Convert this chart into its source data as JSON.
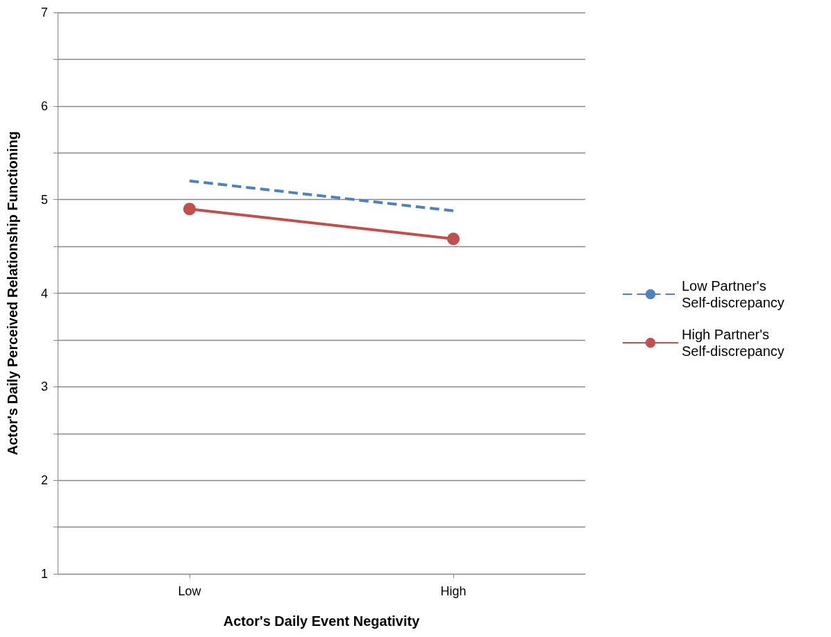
{
  "chart_data": {
    "type": "line",
    "xlabel": "Actor's Daily Event Negativity",
    "ylabel": "Actor's Daily Perceived Relationship Functioning",
    "categories": [
      "Low",
      "High"
    ],
    "series": [
      {
        "name": "Low Partner's Self-discrepancy",
        "color": "#4f81bd",
        "values": [
          5.2,
          4.88
        ],
        "line_style": "dashed",
        "marker": "none"
      },
      {
        "name": "High Partner's Self-discrepancy",
        "color": "#c0504d",
        "values": [
          4.9,
          4.58
        ],
        "line_style": "solid",
        "marker": "circle"
      }
    ],
    "ylim": [
      1,
      7
    ],
    "yticks": [
      1,
      {
        "value": 1.5,
        "label": null
      },
      2,
      {
        "value": 2.5,
        "label": null
      },
      3,
      {
        "value": 3.5,
        "label": null
      },
      4,
      {
        "value": 4.5,
        "label": null
      },
      5,
      {
        "value": 5.5,
        "label": null
      },
      6,
      {
        "value": 6.5,
        "label": null
      },
      7
    ],
    "grid": "y",
    "legend": "right"
  }
}
